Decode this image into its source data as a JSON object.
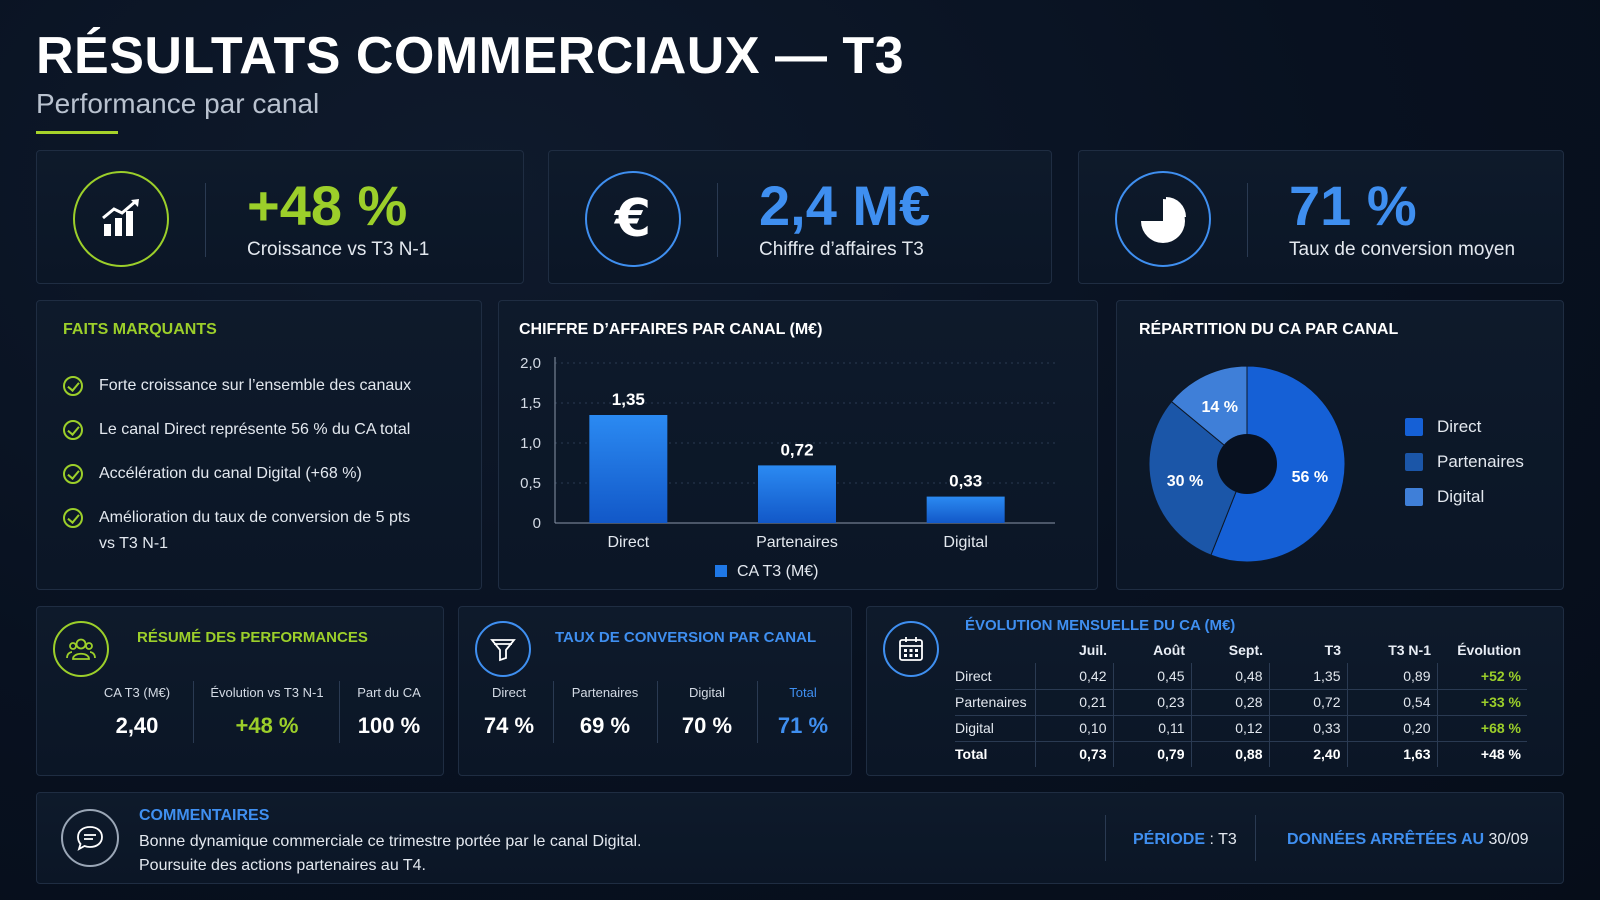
{
  "header": {
    "title": "RÉSULTATS COMMERCIAUX — T3",
    "subtitle": "Performance par canal"
  },
  "kpis": [
    {
      "value": "+48 %",
      "label": "Croissance vs T3 N-1",
      "icon": "growth-chart-icon",
      "color": "#9ccf2a"
    },
    {
      "value": "2,4 M€",
      "label": "Chiffre d’affaires T3",
      "icon": "euro-icon",
      "color": "#3f8ff0"
    },
    {
      "value": "71 %",
      "label": "Taux de conversion moyen",
      "icon": "pie-icon",
      "color": "#3f8ff0"
    }
  ],
  "highlights": {
    "title": "FAITS MARQUANTS",
    "items": [
      "Forte croissance sur l’ensemble des canaux",
      "Le canal Direct représente 56 % du CA total",
      "Accélération du canal Digital (+68 %)",
      "Amélioration du taux de conversion de 5 pts",
      "vs T3 N-1"
    ]
  },
  "chart_data": [
    {
      "type": "bar",
      "title": "CHIFFRE D’AFFAIRES PAR CANAL (M€)",
      "categories": [
        "Direct",
        "Partenaires",
        "Digital"
      ],
      "series": [
        {
          "name": "CA T3 (M€)",
          "values": [
            1.35,
            0.72,
            0.33
          ]
        }
      ],
      "value_labels": [
        "1,35",
        "0,72",
        "0,33"
      ],
      "y_ticks": [
        "0",
        "0,5",
        "1,0",
        "1,5",
        "2,0"
      ],
      "ylim": [
        0,
        2.0
      ],
      "grid": true,
      "legend": "bottom",
      "color": "#1f78e6"
    },
    {
      "type": "pie",
      "title": "RÉPARTITION DU CA PAR CANAL",
      "categories": [
        "Direct",
        "Partenaires",
        "Digital"
      ],
      "values": [
        56,
        30,
        14
      ],
      "value_labels": [
        "56 %",
        "30 %",
        "14 %"
      ],
      "colors": [
        "#1560d6",
        "#1b56a8",
        "#3f7fd8"
      ],
      "donut": true,
      "legend": "right"
    }
  ],
  "performance": {
    "title": "RÉSUMÉ DES PERFORMANCES",
    "stats": [
      {
        "label": "CA T3 (M€)",
        "value": "2,40"
      },
      {
        "label": "Évolution vs T3 N-1",
        "value": "+48 %"
      },
      {
        "label": "Part du CA",
        "value": "100 %"
      }
    ]
  },
  "conversion": {
    "title": "TAUX DE CONVERSION PAR CANAL",
    "stats": [
      {
        "label": "Direct",
        "value": "74 %"
      },
      {
        "label": "Partenaires",
        "value": "69 %"
      },
      {
        "label": "Digital",
        "value": "70 %"
      },
      {
        "label": "Total",
        "value": "71 %"
      }
    ]
  },
  "monthly": {
    "title": "ÉVOLUTION MENSUELLE DU CA (M€)",
    "headers": [
      "Juil.",
      "Août",
      "Sept.",
      "T3",
      "T3 N-1",
      "Évolution"
    ],
    "rows": [
      {
        "name": "Direct",
        "cells": [
          "0,42",
          "0,45",
          "0,48",
          "1,35",
          "0,89",
          "+52 %"
        ]
      },
      {
        "name": "Partenaires",
        "cells": [
          "0,21",
          "0,23",
          "0,28",
          "0,72",
          "0,54",
          "+33 %"
        ]
      },
      {
        "name": "Digital",
        "cells": [
          "0,10",
          "0,11",
          "0,12",
          "0,33",
          "0,20",
          "+68 %"
        ]
      },
      {
        "name": "Total",
        "cells": [
          "0,73",
          "0,79",
          "0,88",
          "2,40",
          "1,63",
          "+48 %"
        ]
      }
    ]
  },
  "comments": {
    "title": "COMMENTAIRES",
    "line1": "Bonne dynamique commerciale ce trimestre portée par le canal Digital.",
    "line2": "Poursuite des actions partenaires au T4.",
    "period_label": "PÉRIODE",
    "period_value": " : T3",
    "data_label": "DONNÉES ARRÊTÉES AU",
    "data_value": " 30/09"
  }
}
